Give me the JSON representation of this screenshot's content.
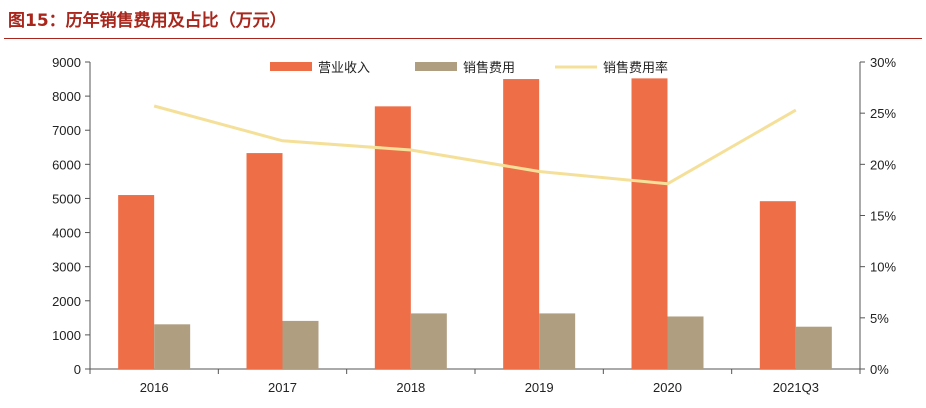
{
  "figure": {
    "title": "图15：历年销售费用及占比（万元）"
  },
  "colors": {
    "revenue": "#ee6f47",
    "expense": "#b09e80",
    "ratio": "#f5e09a",
    "title": "#a8261c",
    "axis": "#555555"
  },
  "chart_data": {
    "type": "bar",
    "title": "历年销售费用及占比（万元）",
    "categories": [
      "2016",
      "2017",
      "2018",
      "2019",
      "2020",
      "2021Q3"
    ],
    "series": [
      {
        "name": "营业收入",
        "kind": "bar",
        "axis": "left",
        "values": [
          5100,
          6330,
          7700,
          8500,
          8520,
          4920
        ]
      },
      {
        "name": "销售费用",
        "kind": "bar",
        "axis": "left",
        "values": [
          1310,
          1410,
          1630,
          1630,
          1540,
          1240
        ]
      },
      {
        "name": "销售费用率",
        "kind": "line",
        "axis": "right",
        "values": [
          25.7,
          22.3,
          21.4,
          19.3,
          18.1,
          25.3
        ]
      }
    ],
    "y_left": {
      "min": 0,
      "max": 9000,
      "ticks": [
        0,
        1000,
        2000,
        3000,
        4000,
        5000,
        6000,
        7000,
        8000,
        9000
      ]
    },
    "y_right": {
      "min": 0,
      "max": 30,
      "ticks": [
        0,
        5,
        10,
        15,
        20,
        25,
        30
      ],
      "tick_labels": [
        "0%",
        "5%",
        "10%",
        "15%",
        "20%",
        "25%",
        "30%"
      ]
    },
    "legend": [
      "营业收入",
      "销售费用",
      "销售费用率"
    ],
    "legend_position": "top-center",
    "grid": false
  }
}
